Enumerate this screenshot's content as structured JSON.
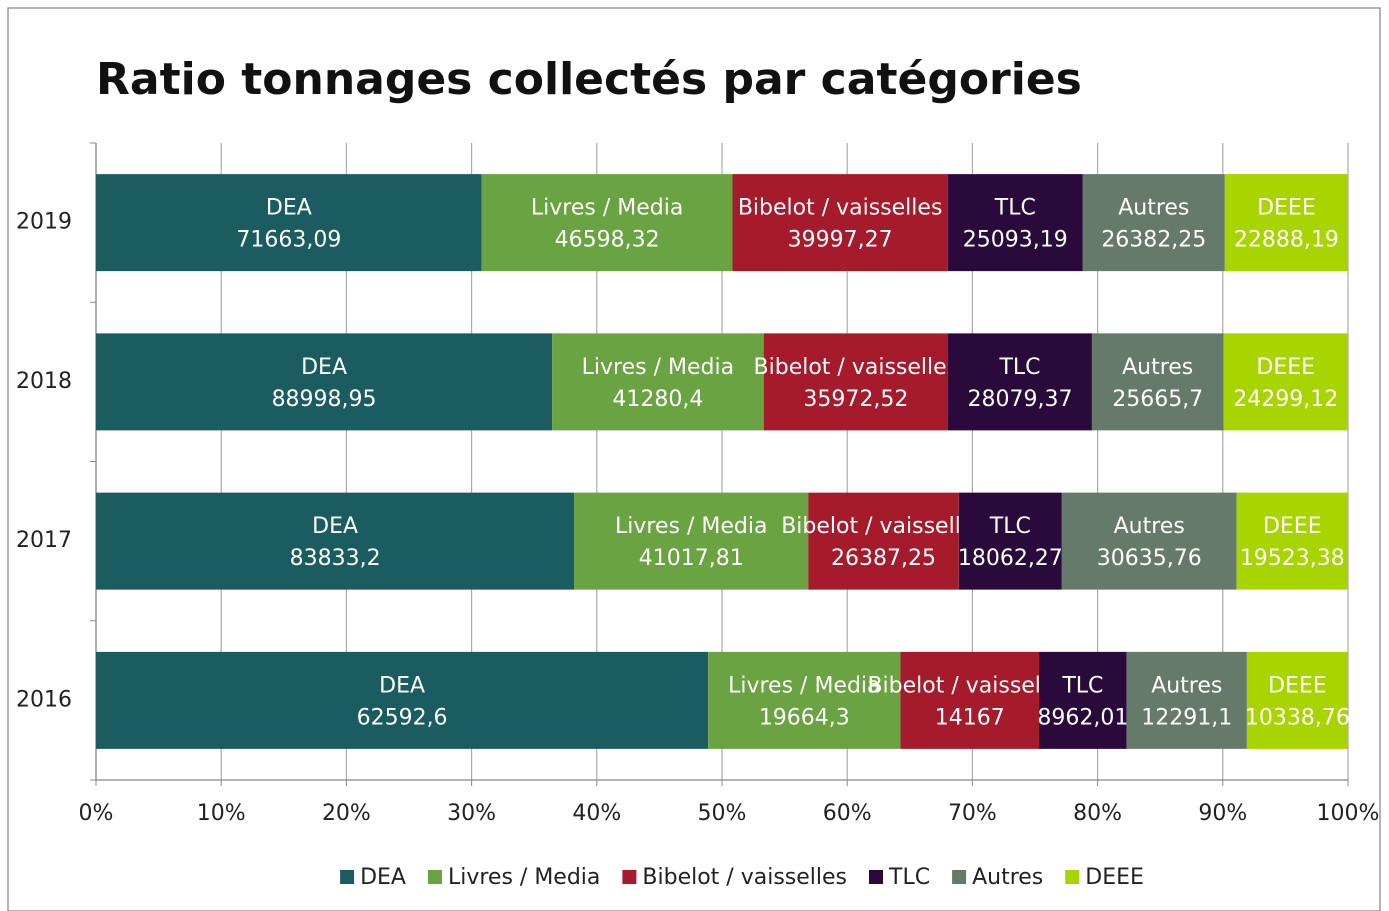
{
  "chart_data": {
    "type": "bar100h",
    "title": "Ratio tonnages collectés par catégories",
    "categories": [
      "2019",
      "2018",
      "2017",
      "2016"
    ],
    "series": [
      {
        "name": "DEA",
        "color": "#1a5c60",
        "values": [
          71663.09,
          88998.95,
          83833.2,
          62592.6
        ],
        "value_labels": [
          "71663,09",
          "88998,95",
          "83833,2",
          "62592,6"
        ]
      },
      {
        "name": "Livres / Media",
        "color": "#6aa342",
        "values": [
          46598.32,
          41280.4,
          41017.81,
          19664.3
        ],
        "value_labels": [
          "46598,32",
          "41280,4",
          "41017,81",
          "19664,3"
        ]
      },
      {
        "name": "Bibelot / vaisselles",
        "color": "#a51b2c",
        "values": [
          39997.27,
          35972.52,
          26387.25,
          14167
        ],
        "value_labels": [
          "39997,27",
          "35972,52",
          "26387,25",
          "14167"
        ]
      },
      {
        "name": "TLC",
        "color": "#2a0a3a",
        "values": [
          25093.19,
          28079.37,
          18062.27,
          8962.01
        ],
        "value_labels": [
          "25093,19",
          "28079,37",
          "18062,27",
          "8962,01"
        ]
      },
      {
        "name": "Autres",
        "color": "#657a6a",
        "values": [
          26382.25,
          25665.7,
          30635.76,
          12291.1
        ],
        "value_labels": [
          "26382,25",
          "25665,7",
          "30635,76",
          "12291,1"
        ]
      },
      {
        "name": "DEEE",
        "color": "#a8d400",
        "values": [
          22888.19,
          24299.12,
          19523.38,
          10338.76
        ],
        "value_labels": [
          "22888,19",
          "24299,12",
          "19523,38",
          "10338,76"
        ]
      }
    ],
    "xlim": [
      0,
      100
    ],
    "xticks": [
      {
        "value": 0,
        "label": "0%"
      },
      {
        "value": 10,
        "label": "10%"
      },
      {
        "value": 20,
        "label": "20%"
      },
      {
        "value": 30,
        "label": "30%"
      },
      {
        "value": 40,
        "label": "40%"
      },
      {
        "value": 50,
        "label": "50%"
      },
      {
        "value": 60,
        "label": "60%"
      },
      {
        "value": 70,
        "label": "70%"
      },
      {
        "value": 80,
        "label": "80%"
      },
      {
        "value": 90,
        "label": "90%"
      },
      {
        "value": 100,
        "label": "100%"
      }
    ],
    "grid": true,
    "legend": "bottom"
  }
}
